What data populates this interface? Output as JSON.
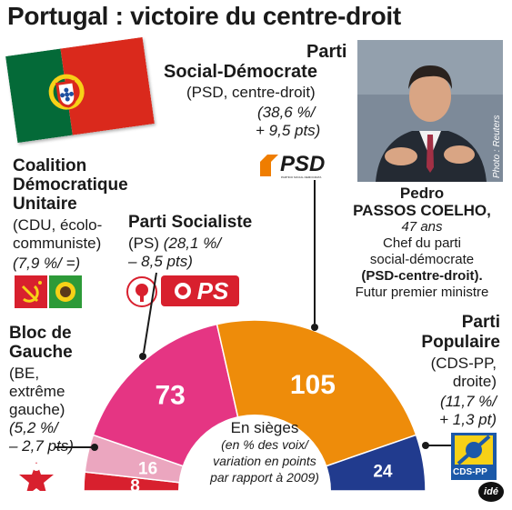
{
  "title": "Portugal : victoire du centre-droit",
  "photo_credit": "Photo : Reuters",
  "credit_logo": "idé",
  "center_label": {
    "line1": "En sièges",
    "line2": "(en % des voix/",
    "line3": "variation en points",
    "line4": "par rapport à 2009)"
  },
  "person": {
    "first_name": "Pedro",
    "last_name": "PASSOS COELHO,",
    "age": "47 ans",
    "role1": "Chef du parti",
    "role2": "social-démocrate",
    "party": "(PSD-centre-droit).",
    "future": "Futur premier ministre"
  },
  "parties": {
    "psd": {
      "name1": "Parti",
      "name2": "Social-Démocrate",
      "desc": "(PSD, centre-droit)",
      "result1": "(38,6 %/",
      "result2": "+ 9,5 pts)",
      "logo": "PSD",
      "logo_small": "PARTIDO SOCIAL DEMOCRATA"
    },
    "cdu": {
      "name1": "Coalition",
      "name2": "Démocratique",
      "name3": "Unitaire",
      "desc1": "(CDU, écolo-",
      "desc2": "communiste)",
      "result": "(7,9 %/ =)"
    },
    "ps": {
      "name": "Parti Socialiste",
      "desc": "(PS)",
      "result1": "(28,1 %/",
      "result2": "– 8,5 pts)",
      "logo": "PS"
    },
    "be": {
      "name1": "Bloc de",
      "name2": "Gauche",
      "desc1": "(BE,",
      "desc2": "extrême",
      "desc3": "gauche)",
      "result1": "(5,2 %/",
      "result2": "– 2,7 pts)"
    },
    "pp": {
      "name1": "Parti",
      "name2": "Populaire",
      "desc1": "(CDS-PP,",
      "desc2": "droite)",
      "result1": "(11,7 %/",
      "result2": "+ 1,3 pt)",
      "logo": "CDS-PP"
    }
  },
  "chart_data": {
    "type": "pie",
    "subtype": "hemicycle",
    "title": "En sièges",
    "categories": [
      "BE",
      "CDU",
      "PS",
      "PSD",
      "CDS-PP"
    ],
    "values": [
      8,
      16,
      73,
      105,
      24
    ],
    "labels": [
      "8",
      "16",
      "73",
      "105",
      "24"
    ],
    "vote_share": [
      "5,2 %",
      "7,9 %",
      "28,1 %",
      "38,6 %",
      "11,7 %"
    ],
    "change": [
      "– 2,7 pts",
      "=",
      "– 8,5 pts",
      "+ 9,5 pts",
      "+ 1,3 pt"
    ],
    "colors": [
      "#d8202e",
      "#eba6bf",
      "#e53583",
      "#ee8c0a",
      "#213b8e"
    ]
  }
}
